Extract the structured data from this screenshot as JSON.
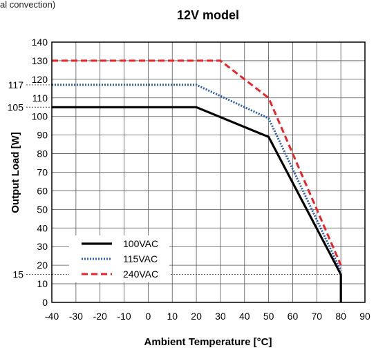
{
  "header_fragment": "al convection)",
  "chart_data": {
    "type": "line",
    "title": "12V model",
    "xlabel": "Ambient Temperature [°C]",
    "ylabel": "Output Load [W]",
    "xlim": [
      -40,
      90
    ],
    "ylim": [
      0,
      140
    ],
    "x_ticks": [
      -40,
      -30,
      -20,
      -10,
      0,
      10,
      20,
      30,
      40,
      50,
      60,
      70,
      80,
      90
    ],
    "y_ticks": [
      0,
      10,
      20,
      30,
      40,
      50,
      60,
      70,
      80,
      90,
      100,
      110,
      120,
      130,
      140
    ],
    "grid": true,
    "legend_position": "bottom-left",
    "series": [
      {
        "name": "100VAC",
        "color": "#000000",
        "style": "solid",
        "points": [
          [
            -40,
            105
          ],
          [
            20,
            105
          ],
          [
            50,
            89
          ],
          [
            80,
            15
          ],
          [
            80,
            0
          ]
        ]
      },
      {
        "name": "115VAC",
        "color": "#2a5caa",
        "style": "dotted",
        "points": [
          [
            -40,
            117
          ],
          [
            20,
            117
          ],
          [
            50,
            99
          ],
          [
            80,
            17
          ]
        ]
      },
      {
        "name": "240VAC",
        "color": "#e8242a",
        "style": "dashed",
        "points": [
          [
            -40,
            130
          ],
          [
            30,
            130
          ],
          [
            50,
            110
          ],
          [
            80,
            20
          ]
        ]
      }
    ],
    "reference_lines": [
      {
        "y": 117,
        "label": "117"
      },
      {
        "y": 105,
        "label": "105"
      },
      {
        "y": 15,
        "label": "15"
      }
    ]
  }
}
